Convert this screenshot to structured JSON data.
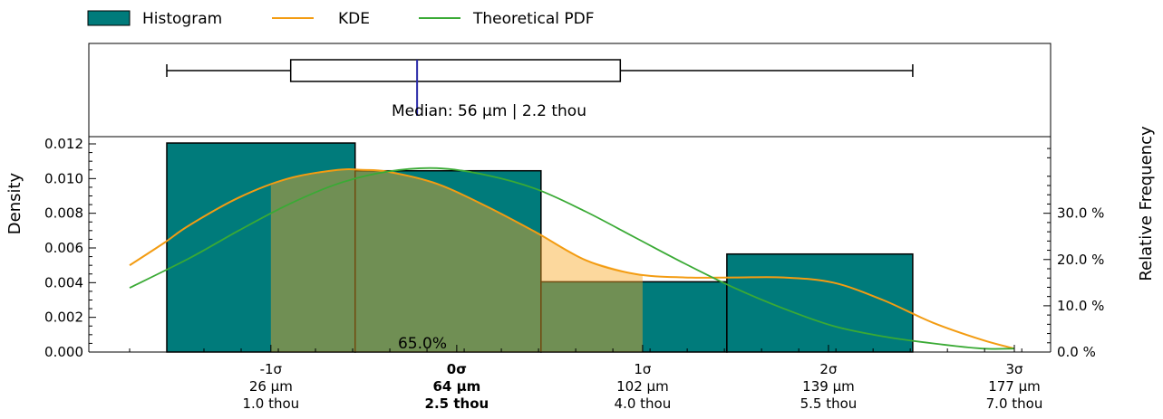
{
  "chart_data": {
    "type": "bar",
    "title": "",
    "ylabel": "Density",
    "ylabel_right": "Relative Frequency",
    "ylim": [
      0,
      0.0126
    ],
    "xlim": [
      0,
      200
    ],
    "yticks": [
      "0.000",
      "0.002",
      "0.004",
      "0.006",
      "0.008",
      "0.010",
      "0.012"
    ],
    "yticks_values": [
      0,
      0.002,
      0.004,
      0.006,
      0.008,
      0.01,
      0.012
    ],
    "right_ticks": [
      "0.0 %",
      "10.0 %",
      "20.0 %",
      "30.0 %"
    ],
    "right_ticks_values": [
      0,
      0.1,
      0.2,
      0.3
    ],
    "sigma_ticks": [
      {
        "x": 26.5,
        "sigma": "-1σ",
        "um": "26 µm",
        "thou": "1.0 thou",
        "bold": false
      },
      {
        "x": 64,
        "sigma": "0σ",
        "um": "64 µm",
        "thou": "2.5 thou",
        "bold": true
      },
      {
        "x": 101.5,
        "sigma": "1σ",
        "um": "102 µm",
        "thou": "4.0 thou",
        "bold": false
      },
      {
        "x": 139,
        "sigma": "2σ",
        "um": "139 µm",
        "thou": "5.5 thou",
        "bold": false
      },
      {
        "x": 176.5,
        "sigma": "3σ",
        "um": "177 µm",
        "thou": "7.0 thou",
        "bold": false
      }
    ],
    "histogram": {
      "name": "Histogram",
      "color": "#007b7b",
      "bins": [
        {
          "left": 5.5,
          "right": 43.5,
          "density": 0.01205
        },
        {
          "left": 43.5,
          "right": 81.0,
          "density": 0.01045
        },
        {
          "left": 81.0,
          "right": 118.5,
          "density": 0.00405
        },
        {
          "left": 118.5,
          "right": 156.0,
          "density": 0.00565
        }
      ]
    },
    "kde": {
      "name": "KDE",
      "color": "#f39c12",
      "x": [
        -2,
        5,
        10,
        20,
        30,
        40,
        45,
        50,
        60,
        70,
        80,
        90,
        100,
        110,
        120,
        130,
        140,
        150,
        160,
        170,
        176.5
      ],
      "y": [
        0.005,
        0.0063,
        0.0073,
        0.0089,
        0.01,
        0.0105,
        0.0105,
        0.0104,
        0.0097,
        0.0084,
        0.0069,
        0.0053,
        0.0045,
        0.0043,
        0.0043,
        0.0043,
        0.004,
        0.003,
        0.0017,
        0.0007,
        0.0002
      ]
    },
    "pdf": {
      "name": "Theoretical PDF",
      "color": "#3aaa35",
      "x": [
        -2,
        10,
        20,
        30,
        40,
        50,
        60,
        70,
        80,
        90,
        100,
        110,
        120,
        130,
        140,
        150,
        160,
        170,
        176.5
      ],
      "y": [
        0.0037,
        0.0054,
        0.007,
        0.0085,
        0.0097,
        0.0104,
        0.0106,
        0.0102,
        0.0094,
        0.0081,
        0.0066,
        0.0051,
        0.0037,
        0.0025,
        0.0015,
        0.0009,
        0.0005,
        0.0002,
        0.0002
      ]
    },
    "shaded_region": {
      "from": 26.5,
      "to": 101.5,
      "label": "65.0%"
    },
    "boxplot": {
      "whisker_low": 5.5,
      "q1": 30.5,
      "median": 56,
      "q3": 97,
      "whisker_high": 156,
      "median_label": "Median: 56 µm | 2.2 thou"
    },
    "legend": {
      "position": "top-left",
      "items": [
        "Histogram",
        "KDE",
        "Theoretical PDF"
      ]
    }
  }
}
